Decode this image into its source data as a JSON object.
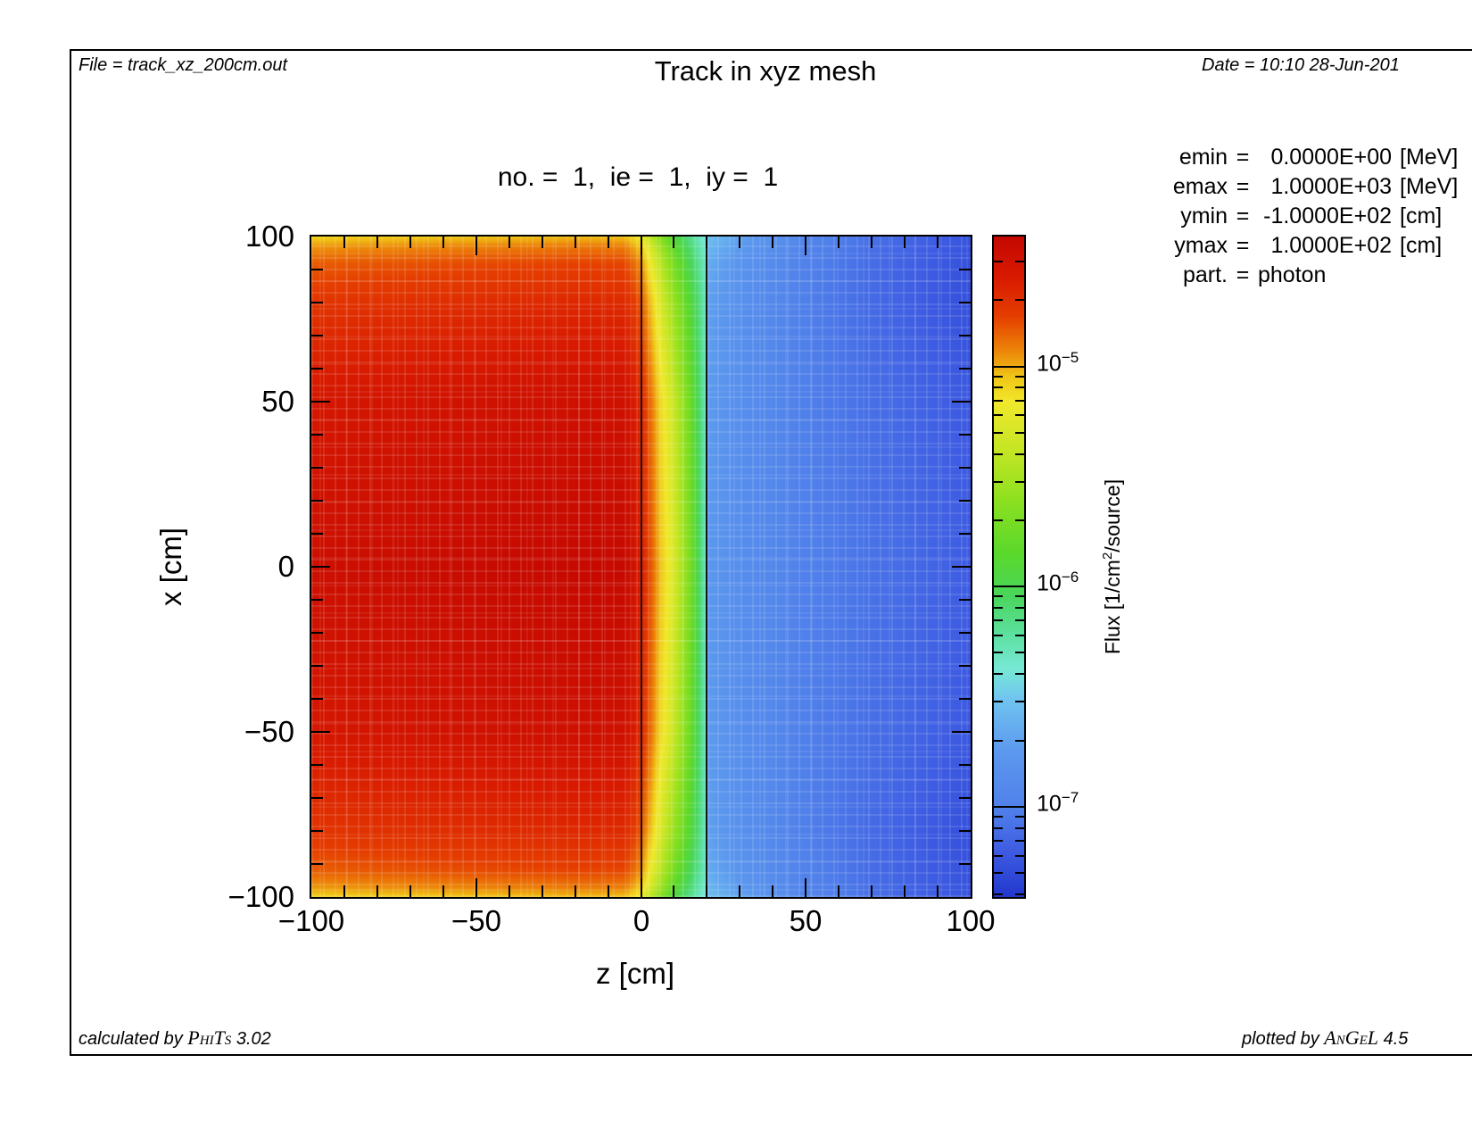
{
  "header": {
    "file_label": "File = track_xz_200cm.out",
    "title": "Track in xyz mesh",
    "date_label": "Date = 10:10 28-Jun-201",
    "subtitle": "no. =  1,  ie =  1,  iy =  1"
  },
  "legend": {
    "rows": [
      {
        "key": "emin",
        "value": "0.0000E+00",
        "unit": "[MeV]"
      },
      {
        "key": "emax",
        "value": "1.0000E+03",
        "unit": "[MeV]"
      },
      {
        "key": "ymin",
        "value": "-1.0000E+02",
        "unit": "[cm]"
      },
      {
        "key": "ymax",
        "value": "1.0000E+02",
        "unit": "[cm]"
      },
      {
        "key": "part.",
        "value": "photon",
        "unit": ""
      }
    ]
  },
  "footer": {
    "calc_prefix": "calculated by ",
    "calc_name": "PhiTs",
    "calc_version": " 3.02",
    "plot_prefix": "plotted by ",
    "plot_name": "AnGeL",
    "plot_version": " 4.5"
  },
  "chart_data": {
    "type": "heatmap",
    "title": "Track in xyz mesh",
    "subtitle": "no. =  1,  ie =  1,  iy =  1",
    "xlabel": "z [cm]",
    "ylabel": "x [cm]",
    "xlim": [
      -100,
      100
    ],
    "ylim": [
      -100,
      100
    ],
    "x_major_ticks": [
      -100,
      -50,
      0,
      50,
      100
    ],
    "y_major_ticks": [
      -100,
      -50,
      0,
      50,
      100
    ],
    "minor_tick_step": 10,
    "region_boundaries_z": [
      0,
      20
    ],
    "colorbar": {
      "label_pre": "Flux [1/cm",
      "label_sup": "2",
      "label_post": "/source]",
      "decade_ticks": [
        -5,
        -6,
        -7
      ],
      "range_log10": [
        -4.41,
        -7.41
      ],
      "legend_position": "right"
    },
    "colormap": [
      [
        -4.41,
        196,
        8,
        0
      ],
      [
        -4.59,
        216,
        26,
        0
      ],
      [
        -4.77,
        229,
        62,
        0
      ],
      [
        -4.92,
        236,
        130,
        8
      ],
      [
        -5.05,
        240,
        200,
        24
      ],
      [
        -5.16,
        241,
        232,
        44
      ],
      [
        -5.37,
        198,
        230,
        36
      ],
      [
        -5.61,
        140,
        224,
        32
      ],
      [
        -5.85,
        90,
        216,
        44
      ],
      [
        -6.04,
        74,
        214,
        92
      ],
      [
        -6.21,
        92,
        224,
        158
      ],
      [
        -6.37,
        120,
        233,
        214
      ],
      [
        -6.51,
        112,
        196,
        240
      ],
      [
        -6.75,
        92,
        152,
        238
      ],
      [
        -7.01,
        80,
        128,
        234
      ],
      [
        -7.2,
        62,
        92,
        226
      ],
      [
        -7.41,
        34,
        55,
        205
      ]
    ],
    "grid": {
      "value_scale": "log10 flux [1/cm2/source]",
      "z": [
        -100,
        -50,
        -20,
        -5,
        0,
        3,
        6,
        10,
        15,
        19.9,
        20.1,
        30,
        50,
        75,
        100
      ],
      "x": [
        100,
        97,
        92,
        80,
        50,
        0,
        -50,
        -80,
        -92,
        -97,
        -100
      ],
      "log10_flux": [
        [
          -5.08,
          -5.05,
          -5.03,
          -5.04,
          -5.18,
          -5.42,
          -5.65,
          -5.92,
          -6.18,
          -6.42,
          -6.52,
          -6.68,
          -6.94,
          -7.12,
          -7.24
        ],
        [
          -4.96,
          -4.92,
          -4.9,
          -4.91,
          -5.06,
          -5.3,
          -5.54,
          -5.82,
          -6.1,
          -6.38,
          -6.58,
          -6.74,
          -6.97,
          -7.13,
          -7.25
        ],
        [
          -4.84,
          -4.8,
          -4.78,
          -4.79,
          -4.94,
          -5.18,
          -5.42,
          -5.7,
          -6.02,
          -6.34,
          -6.64,
          -6.79,
          -6.99,
          -7.14,
          -7.26
        ],
        [
          -4.72,
          -4.68,
          -4.66,
          -4.67,
          -4.82,
          -5.04,
          -5.28,
          -5.56,
          -5.9,
          -6.33,
          -6.7,
          -6.83,
          -7.01,
          -7.15,
          -7.27
        ],
        [
          -4.56,
          -4.51,
          -4.49,
          -4.5,
          -4.66,
          -4.88,
          -5.1,
          -5.36,
          -5.76,
          -6.34,
          -6.73,
          -6.85,
          -7.01,
          -7.12,
          -7.22
        ],
        [
          -4.48,
          -4.44,
          -4.43,
          -4.43,
          -4.6,
          -4.82,
          -5.04,
          -5.28,
          -5.7,
          -6.35,
          -6.75,
          -6.86,
          -7.0,
          -7.1,
          -7.2
        ],
        [
          -4.56,
          -4.51,
          -4.49,
          -4.5,
          -4.66,
          -4.88,
          -5.1,
          -5.36,
          -5.76,
          -6.34,
          -6.73,
          -6.85,
          -7.01,
          -7.12,
          -7.22
        ],
        [
          -4.72,
          -4.68,
          -4.66,
          -4.67,
          -4.82,
          -5.04,
          -5.28,
          -5.56,
          -5.9,
          -6.33,
          -6.7,
          -6.83,
          -7.01,
          -7.15,
          -7.27
        ],
        [
          -4.84,
          -4.8,
          -4.78,
          -4.79,
          -4.94,
          -5.18,
          -5.42,
          -5.7,
          -6.02,
          -6.34,
          -6.64,
          -6.79,
          -6.99,
          -7.14,
          -7.26
        ],
        [
          -4.96,
          -4.92,
          -4.9,
          -4.91,
          -5.06,
          -5.3,
          -5.54,
          -5.82,
          -6.1,
          -6.38,
          -6.58,
          -6.74,
          -6.97,
          -7.13,
          -7.25
        ],
        [
          -5.08,
          -5.05,
          -5.03,
          -5.04,
          -5.18,
          -5.42,
          -5.65,
          -5.92,
          -6.18,
          -6.42,
          -6.52,
          -6.68,
          -6.94,
          -7.12,
          -7.24
        ]
      ]
    }
  }
}
